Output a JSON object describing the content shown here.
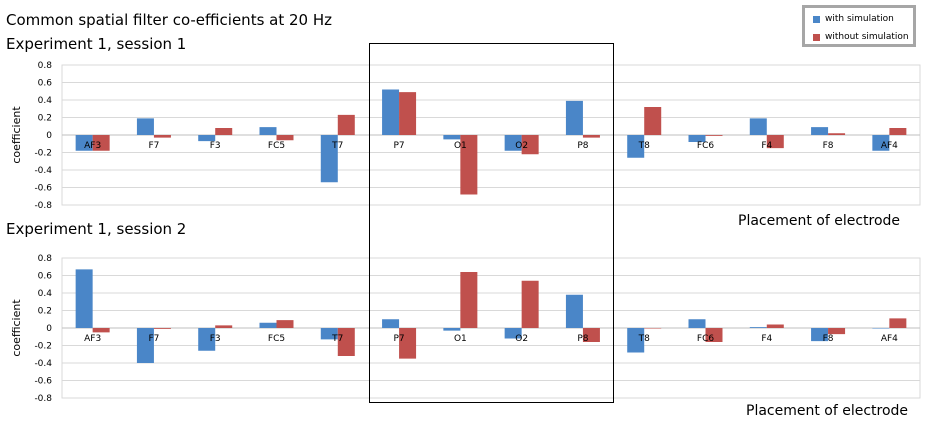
{
  "figure_title": "Common spatial filter co-efficients at 20 Hz",
  "legend": {
    "items": [
      {
        "label": "with simulation",
        "color": "#4a86c8"
      },
      {
        "label": "without simulation",
        "color": "#c0504d"
      }
    ]
  },
  "chart_data": [
    {
      "type": "bar",
      "title": "Experiment 1, session 1",
      "xlabel": "Placement of electrode",
      "ylabel": "coefficient",
      "ylim": [
        -0.8,
        0.8
      ],
      "yticks": [
        "0.8",
        "0.6",
        "0.4",
        "0.2",
        "0",
        "-0.2",
        "-0.4",
        "-0.6",
        "-0.8"
      ],
      "ytick_values": [
        0.8,
        0.6,
        0.4,
        0.2,
        0,
        -0.2,
        -0.4,
        -0.6,
        -0.8
      ],
      "grid": true,
      "legend_position": "top-right",
      "categories": [
        "AF3",
        "F7",
        "F3",
        "FC5",
        "T7",
        "P7",
        "O1",
        "O2",
        "P8",
        "T8",
        "FC6",
        "F4",
        "F8",
        "AF4"
      ],
      "series": [
        {
          "name": "with simulation",
          "color": "#4a86c8",
          "values": [
            -0.18,
            0.19,
            -0.07,
            0.09,
            -0.54,
            0.52,
            -0.05,
            -0.18,
            0.39,
            -0.26,
            -0.08,
            0.19,
            0.09,
            -0.18
          ]
        },
        {
          "name": "without simulation",
          "color": "#c0504d",
          "values": [
            -0.18,
            -0.03,
            0.08,
            -0.06,
            0.23,
            0.49,
            -0.68,
            -0.22,
            -0.03,
            0.32,
            -0.01,
            -0.15,
            0.02,
            0.08
          ]
        }
      ]
    },
    {
      "type": "bar",
      "title": "Experiment 1, session 2",
      "xlabel": "Placement of electrode",
      "ylabel": "coefficient",
      "ylim": [
        -0.8,
        0.8
      ],
      "yticks": [
        "0.8",
        "0.6",
        "0.4",
        "0.2",
        "0",
        "-0.2",
        "-0.4",
        "-0.6",
        "-0.8"
      ],
      "ytick_values": [
        0.8,
        0.6,
        0.4,
        0.2,
        0,
        -0.2,
        -0.4,
        -0.6,
        -0.8
      ],
      "grid": true,
      "categories": [
        "AF3",
        "F7",
        "F3",
        "FC5",
        "T7",
        "P7",
        "O1",
        "O2",
        "P8",
        "T8",
        "FC6",
        "F4",
        "F8",
        "AF4"
      ],
      "series": [
        {
          "name": "with simulation",
          "color": "#4a86c8",
          "values": [
            0.67,
            -0.4,
            -0.26,
            0.06,
            -0.13,
            0.1,
            -0.03,
            -0.12,
            0.38,
            -0.28,
            0.1,
            0.01,
            -0.15,
            0.0
          ]
        },
        {
          "name": "without simulation",
          "color": "#c0504d",
          "values": [
            -0.05,
            -0.01,
            0.03,
            0.09,
            -0.32,
            -0.35,
            0.64,
            0.54,
            -0.16,
            0.0,
            -0.16,
            0.04,
            -0.07,
            0.11
          ]
        }
      ]
    }
  ]
}
